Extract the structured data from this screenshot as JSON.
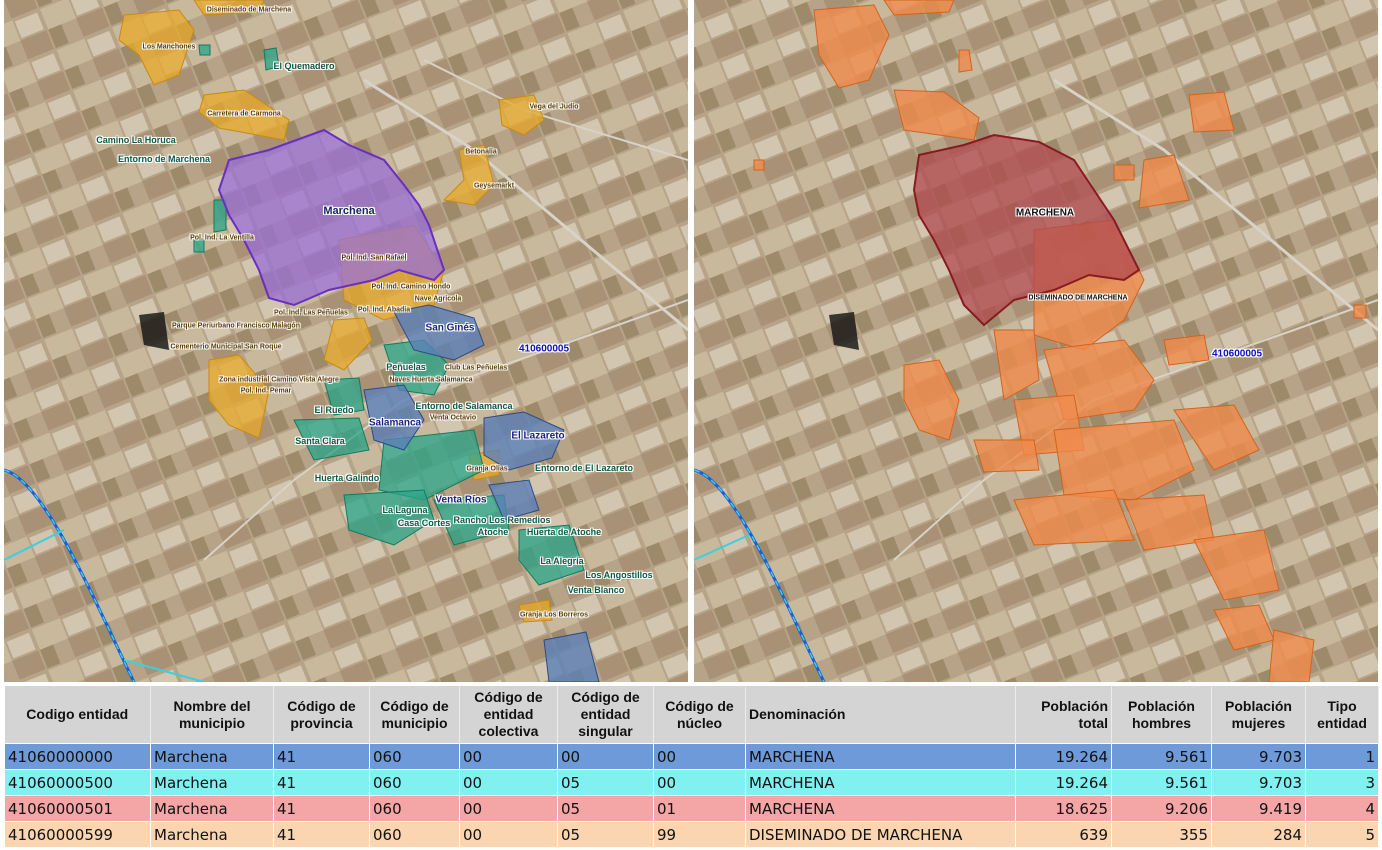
{
  "left_map": {
    "labels": {
      "diseminado": "Diseminado de Marchena",
      "manchones": "Los Manchones",
      "quemadero": "El Quemadero",
      "vega": "Vega del Judio",
      "carretera": "Carretera de Carmona",
      "camino_horuca": "Camino La Horuca",
      "entorno_marchena": "Entorno de Marchena",
      "betonalia": "Betonalia",
      "geysemarkt": "Geysemarkt",
      "marchena": "Marchena",
      "ventilla": "Pol. Ind. La Ventilla",
      "san_rafael": "Pol. Ind. San Rafael",
      "camino_hondo": "Pol. Ind. Camino Hondo",
      "penuelas_pol": "Pol. Ind. Las Peñuelas",
      "nave": "Nave Agricola",
      "abadia": "Pol. Ind. Abadia",
      "san_gines": "San Ginés",
      "parque": "Parque Periurbano Francisco Malagón",
      "cementerio": "Cementerio Municipal San Roque",
      "code": "410600005",
      "penuelas": "Peñuelas",
      "club": "Club Las Peñuelas",
      "naves": "Naves Huerta Salamanca",
      "zona": "Zona industrial Camino Vista Alegre",
      "pemar": "Pol. Ind. Pemar",
      "ruedo": "El Ruedo",
      "entorno_salamanca": "Entorno de Salamanca",
      "venta_octavio": "Venta Octavio",
      "salamanca": "Salamanca",
      "santa_clara": "Santa Clara",
      "lazareto": "El Lazareto",
      "granja_olias": "Granja Olias",
      "entorno_lazareto": "Entorno de El Lazareto",
      "huerta_galindo": "Huerta Galindo",
      "venta_rios": "Venta Ríos",
      "laguna": "La Laguna",
      "casa_cortes": "Casa Cortes",
      "rancho": "Rancho Los Remedios",
      "atoche": "Atoche",
      "huerta_atoche": "Huerta de Atoche",
      "alegria": "La Alegría",
      "angostillos": "Los Angostillos",
      "venta_blanco": "Venta Blanco",
      "granja_borreros": "Granja Los Borreros"
    }
  },
  "right_map": {
    "labels": {
      "marchena": "MARCHENA",
      "diseminado": "DISEMINADO DE MARCHENA",
      "code": "410600005"
    }
  },
  "colors": {
    "nucleus_purple": "#9a6fd6",
    "nucleus_red": "#b04a50",
    "yellow": "#e8a92a",
    "teal": "#2aa68a",
    "blue": "#5b80b8",
    "orange": "#f08a4b"
  },
  "table": {
    "headers": [
      "Codigo entidad",
      "Nombre del municipio",
      "Código de provincia",
      "Código de municipio",
      "Código de entidad colectiva",
      "Código de entidad singular",
      "Código de núcleo",
      "Denominación",
      "Población total",
      "Población hombres",
      "Población mujeres",
      "Tipo entidad"
    ],
    "rows": [
      [
        "41060000000",
        "Marchena",
        "41",
        "060",
        "00",
        "00",
        "00",
        "MARCHENA",
        "19.264",
        "9.561",
        "9.703",
        "1"
      ],
      [
        "41060000500",
        "Marchena",
        "41",
        "060",
        "00",
        "05",
        "00",
        "MARCHENA",
        "19.264",
        "9.561",
        "9.703",
        "3"
      ],
      [
        "41060000501",
        "Marchena",
        "41",
        "060",
        "00",
        "05",
        "01",
        "MARCHENA",
        "18.625",
        "9.206",
        "9.419",
        "4"
      ],
      [
        "41060000599",
        "Marchena",
        "41",
        "060",
        "00",
        "05",
        "99",
        "DISEMINADO DE MARCHENA",
        "639",
        "355",
        "284",
        "5"
      ]
    ]
  }
}
